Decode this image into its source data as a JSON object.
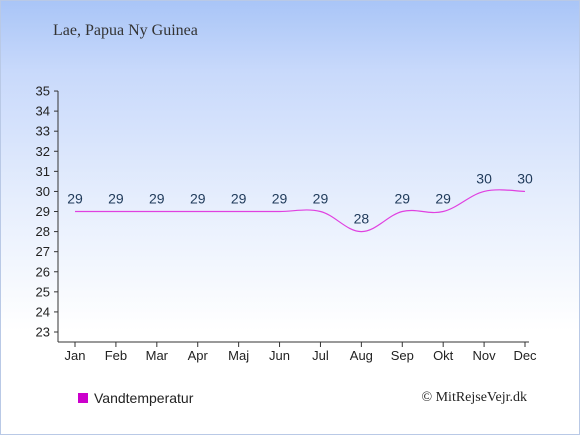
{
  "title": "Lae, Papua Ny Guinea",
  "copyright": "© MitRejseVejr.dk",
  "colors": {
    "line": "#e040e0",
    "legend": "#cc00cc",
    "axis": "#333333",
    "label": "#1f3a5a"
  },
  "chart_data": {
    "type": "line",
    "categories": [
      "Jan",
      "Feb",
      "Mar",
      "Apr",
      "Maj",
      "Jun",
      "Jul",
      "Aug",
      "Sep",
      "Okt",
      "Nov",
      "Dec"
    ],
    "series": [
      {
        "name": "Vandtemperatur",
        "values": [
          29,
          29,
          29,
          29,
          29,
          29,
          29,
          28,
          29,
          29,
          30,
          30
        ]
      }
    ],
    "ylim": [
      23,
      35
    ],
    "yticks": [
      23,
      24,
      25,
      26,
      27,
      28,
      29,
      30,
      31,
      32,
      33,
      34,
      35
    ],
    "data_labels": [
      "29",
      "29",
      "29",
      "29",
      "29",
      "29",
      "29",
      "28",
      "29",
      "29",
      "30",
      "30"
    ],
    "grid": false,
    "legend_position": "bottom-left"
  }
}
